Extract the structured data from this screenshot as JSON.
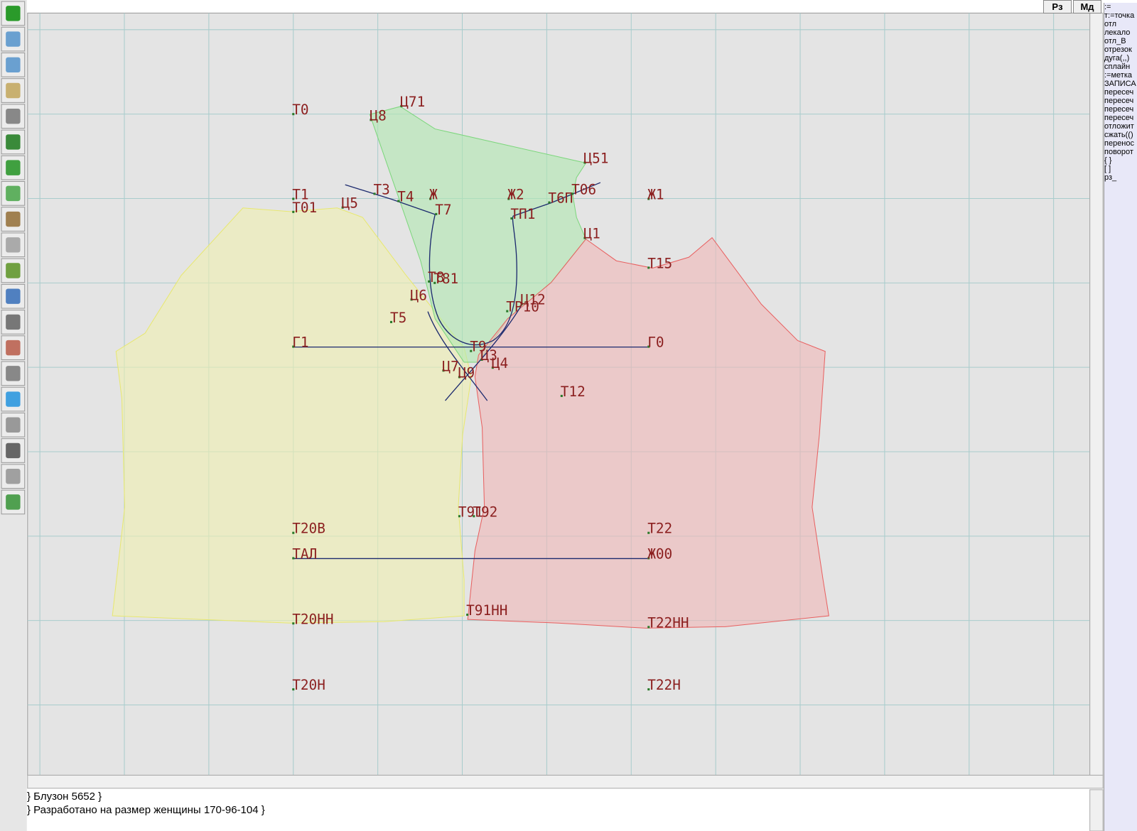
{
  "topbar": {
    "buttons": [
      "Рз",
      "Мд"
    ]
  },
  "canvas": {
    "labels": [
      "Т0",
      "Ц71",
      "Ц8",
      "Ц51",
      "Т1",
      "Т3",
      "Т4",
      "Ж",
      "Ж2",
      "Т6П",
      "Т06",
      "Ж1",
      "Т01",
      "Ц5",
      "Т7",
      "ТП1",
      "Ц1",
      "Т15",
      "Т8",
      "Т81",
      "Ц6",
      "Ц12",
      "ТР10",
      "Т5",
      "Г1",
      "Т9",
      "Г0",
      "Ц3",
      "Ц4",
      "Ц7",
      "Ц9",
      "Т12",
      "Т91",
      "Т92",
      "Т20В",
      "Т22",
      "ТАЛ",
      "Ж00",
      "Т20НН",
      "Т91НН",
      "Т22НН",
      "Т20Н",
      "Т22Н"
    ]
  },
  "command_panel": {
    "items": [
      ":=",
      "т:=точка",
      "отл",
      "лекало",
      "отл_В",
      "отрезок",
      "дуга(,,)",
      "сплайн",
      ":=метка",
      "ЗАПИСА",
      "пересеч",
      "пересеч",
      "пересеч",
      "пересеч",
      "отложит",
      "сжать(()",
      "перенос",
      "поворот",
      "{ }",
      "[ ]",
      "рз_"
    ]
  },
  "console": {
    "lines": [
      "} Блузон 5652 }",
      "} Разработано на размер женщины 170-96-104 }"
    ]
  }
}
